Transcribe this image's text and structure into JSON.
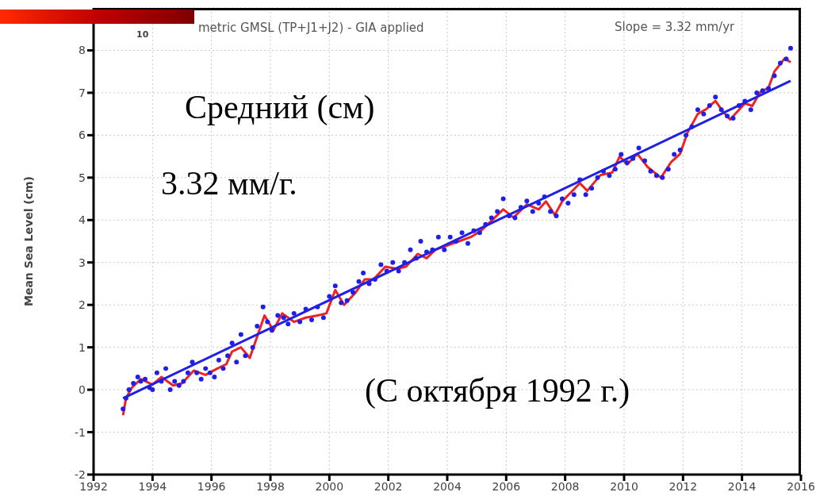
{
  "chart_data": {
    "type": "scatter",
    "title": "metric GMSL (TP+J1+J2) - GIA applied",
    "ylabel": "Mean Sea Level (cm)",
    "annotations": [
      "Slope = 3.32 mm/yr",
      "10",
      "Средний (см)",
      "3.32 мм/г.",
      "(С октября 1992 г.)"
    ],
    "xlim": [
      1992,
      2016
    ],
    "xticks": [
      1992,
      1994,
      1996,
      1998,
      2000,
      2002,
      2004,
      2006,
      2008,
      2010,
      2012,
      2014,
      2016
    ],
    "ylim": [
      -2,
      9
    ],
    "yticks": [
      -2,
      -1,
      0,
      1,
      2,
      3,
      4,
      5,
      6,
      7,
      8
    ],
    "grid": true,
    "marker": "circle",
    "series": [
      {
        "color": "#1f1fe6",
        "x": [
          1993.0,
          1993.1,
          1993.2,
          1993.35,
          1993.5,
          1993.6,
          1993.75,
          1993.9,
          1994.0,
          1994.15,
          1994.3,
          1994.45,
          1994.6,
          1994.75,
          1994.9,
          1995.05,
          1995.2,
          1995.35,
          1995.5,
          1995.65,
          1995.8,
          1995.95,
          1996.1,
          1996.25,
          1996.4,
          1996.55,
          1996.7,
          1996.85,
          1997.0,
          1997.15,
          1997.4,
          1997.55,
          1997.75,
          1997.9,
          1998.05,
          1998.25,
          1998.45,
          1998.6,
          1998.8,
          1999.0,
          1999.2,
          1999.4,
          1999.6,
          1999.8,
          2000.0,
          2000.2,
          2000.4,
          2000.6,
          2000.8,
          2001.0,
          2001.15,
          2001.35,
          2001.55,
          2001.75,
          2001.95,
          2002.15,
          2002.35,
          2002.55,
          2002.75,
          2002.95,
          2003.1,
          2003.3,
          2003.5,
          2003.7,
          2003.9,
          2004.1,
          2004.3,
          2004.5,
          2004.7,
          2004.9,
          2005.1,
          2005.3,
          2005.5,
          2005.7,
          2005.9,
          2006.1,
          2006.3,
          2006.5,
          2006.7,
          2006.9,
          2007.1,
          2007.3,
          2007.5,
          2007.7,
          2007.9,
          2008.1,
          2008.3,
          2008.5,
          2008.7,
          2008.9,
          2009.1,
          2009.3,
          2009.5,
          2009.7,
          2009.9,
          2010.1,
          2010.3,
          2010.5,
          2010.7,
          2010.9,
          2011.1,
          2011.3,
          2011.5,
          2011.7,
          2011.9,
          2012.1,
          2012.3,
          2012.5,
          2012.7,
          2012.9,
          2013.1,
          2013.3,
          2013.5,
          2013.7,
          2013.9,
          2014.1,
          2014.3,
          2014.5,
          2014.7,
          2014.9,
          2015.1,
          2015.3,
          2015.5,
          2015.65
        ],
        "values": [
          -0.45,
          -0.2,
          0.0,
          0.15,
          0.3,
          0.2,
          0.25,
          0.05,
          0.0,
          0.4,
          0.2,
          0.5,
          0.0,
          0.2,
          0.1,
          0.2,
          0.4,
          0.65,
          0.4,
          0.25,
          0.5,
          0.4,
          0.3,
          0.7,
          0.5,
          0.8,
          1.1,
          0.65,
          1.3,
          0.8,
          1.0,
          1.5,
          1.95,
          1.6,
          1.4,
          1.75,
          1.7,
          1.55,
          1.8,
          1.6,
          1.9,
          1.65,
          1.95,
          1.7,
          2.2,
          2.45,
          2.05,
          2.1,
          2.3,
          2.55,
          2.75,
          2.5,
          2.6,
          2.95,
          2.8,
          3.0,
          2.8,
          3.0,
          3.3,
          3.1,
          3.5,
          3.25,
          3.3,
          3.6,
          3.3,
          3.6,
          3.5,
          3.7,
          3.45,
          3.75,
          3.7,
          3.9,
          4.05,
          4.2,
          4.5,
          4.1,
          4.05,
          4.3,
          4.45,
          4.2,
          4.4,
          4.55,
          4.2,
          4.1,
          4.5,
          4.4,
          4.6,
          4.95,
          4.6,
          4.75,
          5.0,
          5.15,
          5.05,
          5.2,
          5.55,
          5.35,
          5.45,
          5.7,
          5.4,
          5.15,
          5.05,
          5.0,
          5.2,
          5.55,
          5.65,
          6.0,
          6.2,
          6.6,
          6.5,
          6.7,
          6.9,
          6.6,
          6.45,
          6.4,
          6.7,
          6.8,
          6.6,
          7.0,
          7.05,
          7.1,
          7.4,
          7.7,
          7.8,
          8.05
        ]
      },
      {
        "type": "line",
        "color": "#ee2222",
        "marker": "none",
        "x": [
          1993.0,
          1993.1,
          1993.3,
          1993.6,
          1994.0,
          1994.3,
          1994.7,
          1995.0,
          1995.4,
          1995.8,
          1996.2,
          1996.5,
          1996.7,
          1997.0,
          1997.3,
          1997.8,
          1998.1,
          1998.4,
          1998.8,
          1999.2,
          1999.6,
          1999.9,
          2000.2,
          2000.5,
          2000.9,
          2001.2,
          2001.5,
          2001.9,
          2002.3,
          2002.6,
          2003.0,
          2003.3,
          2003.6,
          2004.0,
          2004.4,
          2004.8,
          2005.15,
          2005.9,
          2006.25,
          2006.7,
          2007.1,
          2007.35,
          2007.65,
          2007.9,
          2008.5,
          2008.75,
          2009.2,
          2009.6,
          2009.85,
          2010.1,
          2010.45,
          2010.8,
          2011.25,
          2011.6,
          2011.9,
          2012.15,
          2012.5,
          2012.8,
          2013.1,
          2013.35,
          2013.6,
          2014.1,
          2014.35,
          2014.6,
          2014.9,
          2015.1,
          2015.45,
          2015.65
        ],
        "values": [
          -0.6,
          -0.2,
          0.05,
          0.25,
          0.12,
          0.3,
          0.1,
          0.15,
          0.45,
          0.35,
          0.5,
          0.6,
          0.9,
          1.0,
          0.75,
          1.75,
          1.4,
          1.8,
          1.6,
          1.7,
          1.75,
          1.8,
          2.35,
          2.0,
          2.3,
          2.6,
          2.6,
          2.9,
          2.85,
          2.9,
          3.2,
          3.1,
          3.3,
          3.4,
          3.5,
          3.6,
          3.75,
          4.25,
          4.06,
          4.37,
          4.25,
          4.44,
          4.12,
          4.44,
          4.87,
          4.69,
          5.06,
          5.12,
          5.5,
          5.31,
          5.56,
          5.25,
          5.0,
          5.37,
          5.56,
          6.06,
          6.5,
          6.62,
          6.81,
          6.56,
          6.37,
          6.75,
          6.69,
          7.0,
          7.12,
          7.5,
          7.81,
          7.72
        ]
      },
      {
        "type": "line",
        "color": "#1f1fe6",
        "marker": "none",
        "x": [
          1993.0,
          2015.65
        ],
        "values": [
          -0.2,
          7.28
        ]
      }
    ]
  }
}
